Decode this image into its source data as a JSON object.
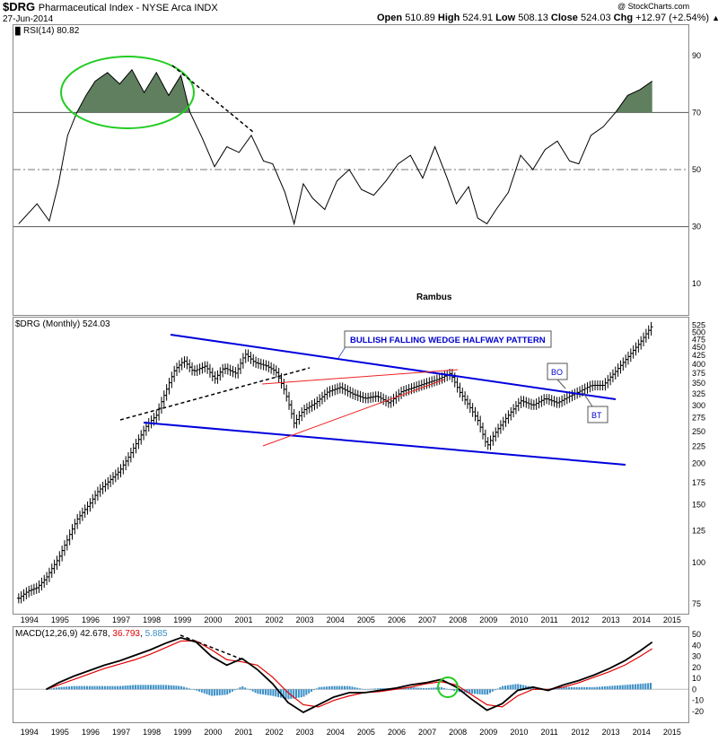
{
  "header": {
    "symbol": "$DRG",
    "name": "Pharmaceutical Index - NYSE Arca INDX",
    "date": "27-Jun-2014",
    "ohlc": {
      "open_label": "Open",
      "open": "510.89",
      "high_label": "High",
      "high": "524.91",
      "low_label": "Low",
      "low": "508.13",
      "close_label": "Close",
      "close": "524.03",
      "chg_label": "Chg",
      "chg": "+12.97 (+2.54%)"
    },
    "copyright": "@ StockCharts.com",
    "author": "Rambus"
  },
  "chart_data": [
    {
      "type": "line",
      "panel": "rsi",
      "legend": "RSI(14) 80.82",
      "ylim": [
        0,
        100
      ],
      "yticks": [
        "90",
        "70",
        "50",
        "30",
        "10"
      ],
      "reference_lines": [
        70,
        50,
        30
      ],
      "x": [
        1993.7,
        1994.3,
        1994.7,
        1995.0,
        1995.3,
        1995.6,
        1995.9,
        1996.2,
        1996.6,
        1997.0,
        1997.4,
        1997.8,
        1998.2,
        1998.6,
        1999.0,
        1999.3,
        1999.7,
        2000.1,
        2000.5,
        2000.9,
        2001.3,
        2001.7,
        2002.0,
        2002.4,
        2002.7,
        2003.0,
        2003.3,
        2003.7,
        2004.1,
        2004.5,
        2004.9,
        2005.3,
        2005.7,
        2006.1,
        2006.5,
        2006.9,
        2007.3,
        2007.7,
        2008.0,
        2008.4,
        2008.7,
        2009.0,
        2009.3,
        2009.7,
        2010.1,
        2010.5,
        2010.9,
        2011.3,
        2011.7,
        2012.0,
        2012.4,
        2012.8,
        2013.2,
        2013.6,
        2014.0,
        2014.4
      ],
      "values": [
        31,
        38,
        32,
        45,
        62,
        70,
        76,
        81,
        84,
        80,
        85,
        77,
        84,
        76,
        83,
        70,
        61,
        51,
        58,
        56,
        62,
        53,
        52,
        42,
        31,
        45,
        40,
        36,
        46,
        50,
        43,
        41,
        46,
        52,
        55,
        47,
        58,
        47,
        38,
        44,
        33,
        31,
        36,
        42,
        55,
        50,
        57,
        60,
        53,
        52,
        62,
        65,
        70,
        76,
        78,
        81
      ],
      "overbought_shading": "green",
      "annotations": [
        "green ellipse around 1995-1999 overbought peaks",
        "dashed downtrend line 1998-2001"
      ]
    },
    {
      "type": "bar",
      "panel": "price",
      "legend": "$DRG (Monthly) 524.03",
      "scale": "log",
      "ylim": [
        70,
        540
      ],
      "yticks": [
        "525",
        "500",
        "475",
        "450",
        "425",
        "400",
        "375",
        "350",
        "325",
        "300",
        "275",
        "250",
        "225",
        "200",
        "175",
        "150",
        "125",
        "100",
        "75"
      ],
      "x": [
        1993.7,
        1994.0,
        1994.3,
        1994.6,
        1995.0,
        1995.3,
        1995.6,
        1996.0,
        1996.3,
        1996.6,
        1997.0,
        1997.3,
        1997.6,
        1997.9,
        1998.2,
        1998.5,
        1998.8,
        1999.1,
        1999.4,
        1999.8,
        2000.1,
        2000.4,
        2000.8,
        2001.1,
        2001.4,
        2001.8,
        2002.1,
        2002.4,
        2002.7,
        2003.0,
        2003.4,
        2003.8,
        2004.2,
        2004.6,
        2005.0,
        2005.4,
        2005.8,
        2006.2,
        2006.6,
        2007.0,
        2007.4,
        2007.8,
        2008.1,
        2008.4,
        2008.7,
        2009.0,
        2009.3,
        2009.7,
        2010.1,
        2010.5,
        2010.9,
        2011.3,
        2011.7,
        2012.0,
        2012.4,
        2012.8,
        2013.2,
        2013.6,
        2014.0,
        2014.4
      ],
      "values": [
        78,
        82,
        84,
        90,
        103,
        118,
        135,
        150,
        165,
        175,
        190,
        210,
        235,
        262,
        280,
        330,
        385,
        410,
        380,
        395,
        360,
        390,
        375,
        430,
        405,
        395,
        380,
        330,
        265,
        290,
        305,
        330,
        340,
        325,
        315,
        320,
        305,
        330,
        340,
        350,
        360,
        375,
        330,
        300,
        270,
        225,
        250,
        280,
        310,
        300,
        315,
        305,
        320,
        330,
        345,
        345,
        380,
        420,
        465,
        524
      ],
      "annotations": [
        {
          "text": "BULLISH FALLING WEDGE HALFWAY PATTERN"
        },
        {
          "text": "BO"
        },
        {
          "text": "BT"
        }
      ]
    },
    {
      "type": "line",
      "panel": "macd",
      "legend": "MACD(12,26,9) 42.678, 36.793, 5.885",
      "legend_parts": {
        "name": "MACD(12,26,9)",
        "macd": "42.678",
        "signal": "36.793",
        "hist": "5.885"
      },
      "ylim": [
        -30,
        55
      ],
      "yticks": [
        "50",
        "40",
        "30",
        "20",
        "10",
        "0",
        "-10",
        "-20"
      ],
      "x": [
        1994.6,
        1995.0,
        1995.5,
        1996.0,
        1996.5,
        1997.0,
        1997.5,
        1998.0,
        1998.5,
        1999.0,
        1999.5,
        2000.0,
        2000.5,
        2001.0,
        2001.5,
        2002.0,
        2002.5,
        2003.0,
        2003.5,
        2004.0,
        2004.5,
        2005.0,
        2005.5,
        2006.0,
        2006.5,
        2007.0,
        2007.5,
        2008.0,
        2008.5,
        2009.0,
        2009.5,
        2010.0,
        2010.5,
        2011.0,
        2011.5,
        2012.0,
        2012.5,
        2013.0,
        2013.5,
        2014.0,
        2014.4
      ],
      "series": [
        {
          "name": "MACD",
          "color": "#000000",
          "values": [
            0,
            6,
            12,
            17,
            22,
            26,
            31,
            36,
            42,
            47,
            43,
            30,
            22,
            28,
            18,
            5,
            -12,
            -21,
            -14,
            -7,
            -3,
            -3,
            -1,
            1,
            4,
            6,
            9,
            2,
            -9,
            -19,
            -13,
            -1,
            2,
            -1,
            4,
            8,
            13,
            19,
            26,
            35,
            43
          ]
        },
        {
          "name": "Signal",
          "color": "#e00000",
          "values": [
            0,
            4,
            9,
            14,
            19,
            23,
            27,
            32,
            38,
            44,
            44,
            36,
            27,
            25,
            22,
            11,
            -3,
            -14,
            -16,
            -10,
            -6,
            -3,
            -2,
            0,
            2,
            5,
            7,
            4,
            -5,
            -14,
            -16,
            -6,
            0,
            0,
            2,
            6,
            11,
            16,
            22,
            30,
            37
          ]
        }
      ],
      "histogram": {
        "name": "Histogram",
        "color": "#3a8fc7"
      }
    }
  ],
  "xaxis_years": [
    "1994",
    "1995",
    "1996",
    "1997",
    "1998",
    "1999",
    "2000",
    "2001",
    "2002",
    "2003",
    "2004",
    "2005",
    "2006",
    "2007",
    "2008",
    "2009",
    "2010",
    "2011",
    "2012",
    "2013",
    "2014",
    "2015"
  ],
  "colors": {
    "rsi_fill": "#5f7f5f",
    "wedge": "#0000dd",
    "red_line": "#ee2222",
    "ellipse": "#22cc22",
    "hist": "#3a8fc7"
  }
}
